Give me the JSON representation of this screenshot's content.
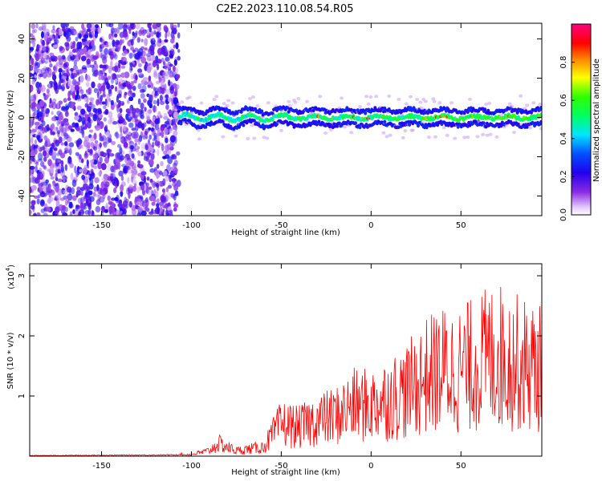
{
  "title": "C2E2.2023.110.08.54.R05",
  "chart_data": [
    {
      "type": "heatmap",
      "xlabel": "Height of straight line (km)",
      "ylabel": "Frequency (Hz)",
      "xlim": [
        -190,
        95
      ],
      "ylim": [
        -50,
        48
      ],
      "x_ticks": [
        -150,
        -100,
        -50,
        0,
        50
      ],
      "y_ticks": [
        -40,
        -20,
        0,
        20,
        40
      ],
      "colorbar": {
        "label": "Normalized spectral amplitude",
        "range": [
          0.0,
          1.0
        ],
        "ticks": [
          0.0,
          0.2,
          0.4,
          0.6,
          0.8
        ],
        "colors": [
          "#ffffff",
          "#e3c8ff",
          "#8a2be2",
          "#5500dd",
          "#0000ff",
          "#00e5ff",
          "#00ff40",
          "#ffff00",
          "#ff0000",
          "#ff0080"
        ]
      },
      "description_values": {
        "noise_region_x": [
          -190,
          -107
        ],
        "band_region_x": [
          -107,
          95
        ],
        "band_center_hz": 0,
        "band_halfwidth_hz": 4
      }
    },
    {
      "type": "line",
      "xlabel": "Height of straight line (km)",
      "ylabel": "SNR (10 * v/v)",
      "y_multiplier_label": "(x10",
      "y_multiplier_exp": "4",
      "xlim": [
        -190,
        95
      ],
      "ylim": [
        0,
        3.2
      ],
      "x_ticks": [
        -150,
        -100,
        -50,
        0,
        50
      ],
      "y_ticks": [
        1,
        2,
        3
      ],
      "color": "#ff0000",
      "envelope": [
        {
          "x": -190,
          "y": 0.01
        },
        {
          "x": -110,
          "y": 0.02
        },
        {
          "x": -100,
          "y": 0.05
        },
        {
          "x": -90,
          "y": 0.15
        },
        {
          "x": -85,
          "y": 0.35
        },
        {
          "x": -75,
          "y": 0.15
        },
        {
          "x": -60,
          "y": 0.25
        },
        {
          "x": -50,
          "y": 0.9
        },
        {
          "x": -40,
          "y": 0.8
        },
        {
          "x": -30,
          "y": 1.0
        },
        {
          "x": -20,
          "y": 1.1
        },
        {
          "x": -10,
          "y": 1.4
        },
        {
          "x": 0,
          "y": 1.4
        },
        {
          "x": 10,
          "y": 1.6
        },
        {
          "x": 20,
          "y": 1.8
        },
        {
          "x": 30,
          "y": 2.2
        },
        {
          "x": 40,
          "y": 2.4
        },
        {
          "x": 50,
          "y": 2.4
        },
        {
          "x": 60,
          "y": 2.6
        },
        {
          "x": 70,
          "y": 2.8
        },
        {
          "x": 80,
          "y": 2.6
        },
        {
          "x": 95,
          "y": 2.4
        }
      ]
    }
  ]
}
